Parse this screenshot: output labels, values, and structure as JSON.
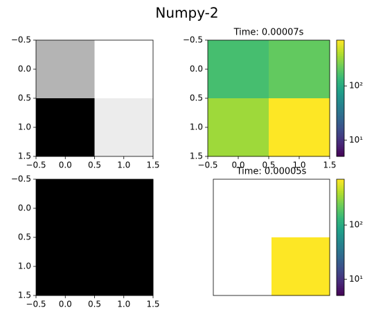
{
  "title": "Numpy-2",
  "chart_data": [
    {
      "type": "heatmap",
      "values": [
        [
          0.706,
          1.0
        ],
        [
          0.0,
          0.925
        ]
      ],
      "cmap": "gray",
      "clim": [
        0,
        1
      ],
      "xlim": [
        -0.5,
        1.5
      ],
      "ylim": [
        1.5,
        -0.5
      ],
      "xticks": [
        {
          "value": -0.5,
          "label": "−0.5"
        },
        {
          "value": 0.0,
          "label": "0.0"
        },
        0.5,
        {
          "value": 1.0,
          "label": "1.0"
        },
        1.5
      ],
      "yticks": [
        {
          "value": -0.5,
          "label": "−0.5"
        },
        {
          "value": 0.0,
          "label": "0.0"
        },
        0.5,
        {
          "value": 1.0,
          "label": "1.0"
        },
        1.5
      ]
    },
    {
      "type": "heatmap",
      "title": "Time: 0.00007s",
      "values": [
        [
          160,
          210
        ],
        [
          340,
          700
        ]
      ],
      "cmap": "viridis",
      "log": true,
      "clim": [
        5,
        700
      ],
      "xlim": [
        -0.5,
        1.5
      ],
      "ylim": [
        1.5,
        -0.5
      ],
      "xticks": [
        {
          "value": -0.5,
          "label": "−0.5"
        },
        {
          "value": 0.0,
          "label": "0.0"
        },
        0.5,
        {
          "value": 1.0,
          "label": "1.0"
        },
        1.5
      ],
      "yticks": [
        {
          "value": -0.5,
          "label": "−0.5"
        },
        {
          "value": 0.0,
          "label": "0.0"
        },
        0.5,
        {
          "value": 1.0,
          "label": "1.0"
        },
        1.5
      ],
      "colorbar_ticks": [
        {
          "value": 10,
          "label": "10¹"
        },
        {
          "value": 100,
          "label": "10²"
        }
      ]
    },
    {
      "type": "heatmap",
      "values": [
        [
          0,
          0
        ],
        [
          0,
          0
        ]
      ],
      "cmap": "gray",
      "clim": [
        0,
        1
      ],
      "xlim": [
        -0.5,
        1.5
      ],
      "ylim": [
        1.5,
        -0.5
      ],
      "xticks": [
        {
          "value": -0.5,
          "label": "−0.5"
        },
        {
          "value": 0.0,
          "label": "0.0"
        },
        0.5,
        {
          "value": 1.0,
          "label": "1.0"
        },
        1.5
      ],
      "yticks": [
        {
          "value": -0.5,
          "label": "−0.5"
        },
        {
          "value": 0.0,
          "label": "0.0"
        },
        0.5,
        {
          "value": 1.0,
          "label": "1.0"
        },
        1.5
      ]
    },
    {
      "type": "heatmap",
      "title": "Time: 0.00005s",
      "values": [
        [
          null,
          null
        ],
        [
          null,
          700
        ]
      ],
      "cmap": "viridis",
      "log": true,
      "clim": [
        5,
        700
      ],
      "colorbar_ticks": [
        {
          "value": 10,
          "label": "10¹"
        },
        {
          "value": 100,
          "label": "10²"
        }
      ]
    }
  ]
}
